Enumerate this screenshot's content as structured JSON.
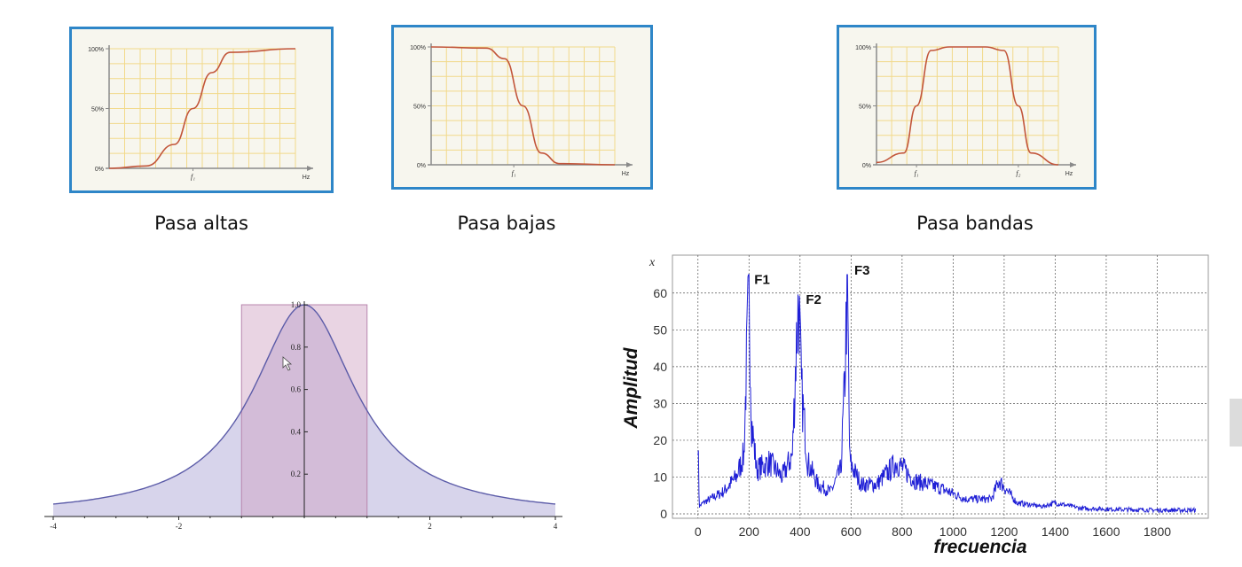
{
  "filters": [
    {
      "id": "high",
      "type": "highpass",
      "caption": "Pasa altas",
      "y_ticks": [
        "100%",
        "50%",
        "0%"
      ],
      "x_marks": [
        "f₁"
      ],
      "x_unit": "Hz"
    },
    {
      "id": "low",
      "type": "lowpass",
      "caption": "Pasa bajas",
      "y_ticks": [
        "100%",
        "50%",
        "0%"
      ],
      "x_marks": [
        "f₁"
      ],
      "x_unit": "Hz"
    },
    {
      "id": "band",
      "type": "bandpass",
      "caption": "Pasa bandas",
      "y_ticks": [
        "100%",
        "50%",
        "0%"
      ],
      "x_marks": [
        "f₁",
        "f₂"
      ],
      "x_unit": "Hz"
    }
  ],
  "chart_data": [
    {
      "type": "line",
      "title": "Pasa altas",
      "ylabel": "",
      "xlabel": "Hz",
      "yticks": [
        "0%",
        "50%",
        "100%"
      ],
      "description_values": {
        "x_cutoff_label": "f1",
        "ylim": [
          0,
          100
        ]
      },
      "x": [
        0,
        0.2,
        0.35,
        0.45,
        0.55,
        0.65,
        1.0
      ],
      "y": [
        0,
        2,
        20,
        50,
        80,
        97,
        100
      ]
    },
    {
      "type": "line",
      "title": "Pasa bajas",
      "ylabel": "",
      "xlabel": "Hz",
      "yticks": [
        "0%",
        "50%",
        "100%"
      ],
      "x": [
        0,
        0.3,
        0.4,
        0.5,
        0.6,
        0.7,
        1.0
      ],
      "y": [
        100,
        99,
        90,
        50,
        10,
        1,
        0
      ]
    },
    {
      "type": "line",
      "title": "Pasa bandas",
      "ylabel": "",
      "xlabel": "Hz",
      "yticks": [
        "0%",
        "50%",
        "100%"
      ],
      "x": [
        0,
        0.15,
        0.22,
        0.3,
        0.4,
        0.6,
        0.7,
        0.78,
        0.85,
        1.0
      ],
      "y": [
        2,
        10,
        50,
        97,
        100,
        100,
        97,
        50,
        10,
        0
      ]
    },
    {
      "type": "area",
      "title": "",
      "xlim": [
        -4,
        4
      ],
      "ylim": [
        0,
        1.0
      ],
      "x_ticks": [
        "-4",
        "-2",
        "2",
        "4"
      ],
      "y_ticks": [
        "0.2",
        "0.4",
        "0.6",
        "0.8",
        "1.0"
      ],
      "curve": "1/(1+x^2)",
      "rect": {
        "x_from": -1,
        "x_to": 1,
        "height": 1.0
      }
    },
    {
      "type": "line",
      "title": "",
      "xlabel": "frecuencia",
      "ylabel": "Amplitud",
      "corner_label": "x",
      "xlim": [
        -100,
        2000
      ],
      "ylim": [
        0,
        65
      ],
      "x_ticks": [
        "0",
        "200",
        "400",
        "600",
        "800",
        "1000",
        "1200",
        "1400",
        "1600",
        "1800"
      ],
      "y_ticks": [
        "0",
        "10",
        "20",
        "30",
        "40",
        "50",
        "60"
      ],
      "annotations": [
        {
          "label": "F1",
          "x": 200,
          "y": 62
        },
        {
          "label": "F2",
          "x": 395,
          "y": 59
        },
        {
          "label": "F3",
          "x": 585,
          "y": 64
        }
      ],
      "envelope": {
        "x": [
          0,
          5,
          20,
          100,
          150,
          180,
          190,
          200,
          210,
          230,
          280,
          330,
          370,
          385,
          395,
          405,
          430,
          470,
          520,
          560,
          575,
          585,
          595,
          640,
          700,
          780,
          850,
          950,
          1050,
          1150,
          1180,
          1250,
          1350,
          1400,
          1500,
          1650,
          1800,
          1950
        ],
        "y": [
          22,
          2,
          3,
          6,
          10,
          16,
          40,
          62,
          25,
          12,
          14,
          10,
          16,
          45,
          59,
          34,
          14,
          8,
          6,
          12,
          35,
          64,
          14,
          8,
          8,
          14,
          9,
          7,
          4,
          4,
          9,
          3,
          2,
          3,
          1.5,
          1.2,
          1,
          1
        ]
      }
    }
  ]
}
